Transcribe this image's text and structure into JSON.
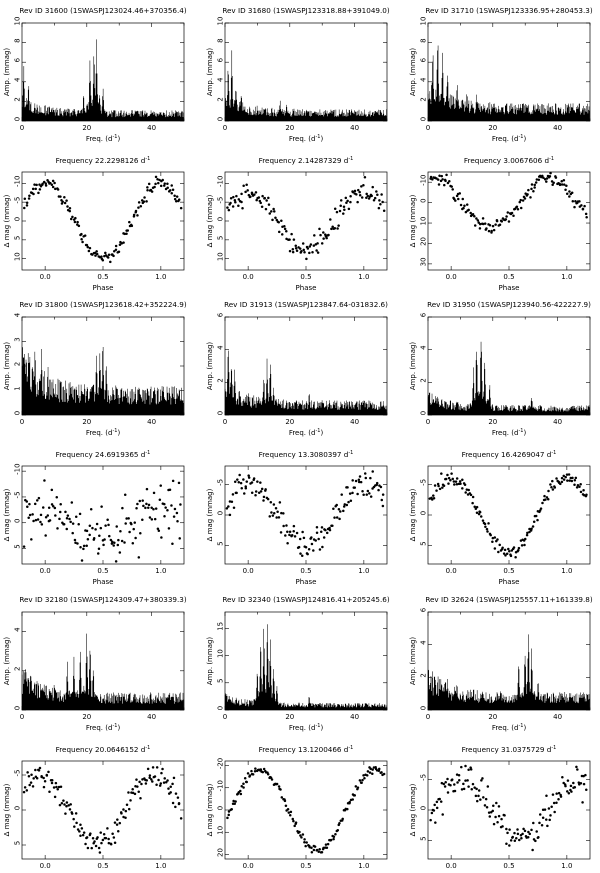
{
  "figure": {
    "freq_xlabel": "Freq. (d",
    "amp_ylabel": "Amp. (mmag)",
    "phase_xlabel": "Phase",
    "mag_ylabel": "Δ mag (mmag)",
    "freq_prefix": "Frequency",
    "freq_unit": "d",
    "unit_exp": "-1",
    "close_paren": ")"
  },
  "chart_data": [
    {
      "type": "line",
      "id": "Rev ID 31600",
      "name": "(1SWASPJ123024.46+370356.4)",
      "title": "Rev ID 31600    (1SWASPJ123024.46+370356.4)",
      "xlim": [
        0,
        50
      ],
      "ylim": [
        0,
        10
      ],
      "xticks": [
        0,
        20,
        40
      ],
      "yticks": [
        0,
        2,
        4,
        6,
        8,
        10
      ],
      "peaks": [
        [
          0.5,
          6.2
        ],
        [
          2,
          4.2
        ],
        [
          4,
          2.1
        ],
        [
          21,
          6.6
        ],
        [
          23,
          9.2
        ],
        [
          22.2,
          8.6
        ],
        [
          25,
          4.0
        ],
        [
          19,
          3.1
        ]
      ],
      "noise": 1.1,
      "frequency": "22.2298126",
      "phase_yticks": [
        -10,
        -5,
        0,
        5,
        10
      ],
      "phase_ylim": [
        -13,
        13
      ],
      "phase_amp": 10,
      "phase_scatter": 1.2,
      "phase_center": 0.5
    },
    {
      "type": "line",
      "id": "Rev ID 31680",
      "name": "(1SWASPJ123318.88+391049.0)",
      "title": "Rev ID 31680    (1SWASPJ123318.88+391049.0)",
      "xlim": [
        0,
        50
      ],
      "ylim": [
        0,
        10
      ],
      "xticks": [
        0,
        20,
        40
      ],
      "yticks": [
        0,
        2,
        4,
        6,
        8,
        10
      ],
      "peaks": [
        [
          1,
          6.8
        ],
        [
          2.1,
          7.4
        ],
        [
          3.4,
          4.2
        ],
        [
          5,
          3.4
        ],
        [
          17,
          2.6
        ],
        [
          19,
          2.0
        ],
        [
          10,
          1.5
        ]
      ],
      "noise": 1.2,
      "frequency": "2.14287329",
      "phase_yticks": [
        -10,
        -5,
        0,
        5,
        10
      ],
      "phase_ylim": [
        -13,
        13
      ],
      "phase_amp": 7.5,
      "phase_scatter": 2.0,
      "phase_center": 0.5
    },
    {
      "type": "line",
      "id": "Rev ID 31710",
      "name": "(1SWASPJ123336.95+280453.3)",
      "title": "Rev ID 31710    (1SWASPJ123336.95+280453.3)",
      "xlim": [
        0,
        50
      ],
      "ylim": [
        0,
        10
      ],
      "xticks": [
        0,
        20,
        40
      ],
      "yticks": [
        0,
        2,
        4,
        6,
        8,
        10
      ],
      "peaks": [
        [
          1.5,
          8.5
        ],
        [
          3,
          9.5
        ],
        [
          4.5,
          7.5
        ],
        [
          6,
          6.0
        ],
        [
          9,
          4.5
        ],
        [
          12,
          3.3
        ],
        [
          15,
          3.0
        ],
        [
          20,
          2.0
        ]
      ],
      "noise": 1.8,
      "frequency": "3.0067606",
      "phase_yticks": [
        -10,
        0,
        10,
        20,
        30
      ],
      "phase_ylim": [
        -15,
        33
      ],
      "phase_amp": 12,
      "phase_scatter": 2.5,
      "phase_center": 0.35
    },
    {
      "type": "line",
      "id": "Rev ID 31800",
      "name": "(1SWASPJ123618.42+352224.9)",
      "title": "Rev ID 31800    (1SWASPJ123618.42+352224.9)",
      "xlim": [
        0,
        50
      ],
      "ylim": [
        0,
        4
      ],
      "xticks": [
        0,
        20,
        40
      ],
      "yticks": [
        0,
        1,
        2,
        3,
        4
      ],
      "peaks": [
        [
          2,
          3.1
        ],
        [
          4,
          3.0
        ],
        [
          6,
          2.8
        ],
        [
          8,
          2.3
        ],
        [
          24,
          3.2
        ],
        [
          25,
          3.4
        ],
        [
          23,
          2.6
        ],
        [
          26,
          2.5
        ],
        [
          12,
          1.5
        ]
      ],
      "noise": 1.2,
      "frequency": "24.6919365",
      "phase_yticks": [
        -10,
        -5,
        0,
        5
      ],
      "phase_ylim": [
        -11,
        8
      ],
      "phase_amp": 2.5,
      "phase_scatter": 3.8,
      "phase_center": 0.5
    },
    {
      "type": "line",
      "id": "Rev ID 31913",
      "name": "(1SWASPJ123847.64-031832.6)",
      "title": "Rev ID 31913    (1SWASPJ123847.64-031832.6)",
      "xlim": [
        0,
        50
      ],
      "ylim": [
        0,
        6
      ],
      "xticks": [
        0,
        20,
        40
      ],
      "yticks": [
        0,
        2,
        4,
        6
      ],
      "peaks": [
        [
          1,
          5.2
        ],
        [
          2,
          4.2
        ],
        [
          3,
          3.2
        ],
        [
          13,
          3.6
        ],
        [
          14,
          4.1
        ],
        [
          12,
          2.5
        ],
        [
          15,
          2.0
        ],
        [
          26,
          1.5
        ]
      ],
      "noise": 0.9,
      "frequency": "13.3080397",
      "phase_yticks": [
        -5,
        0,
        5
      ],
      "phase_ylim": [
        -8,
        8
      ],
      "phase_amp": 5,
      "phase_scatter": 1.6,
      "phase_center": 0.5
    },
    {
      "type": "line",
      "id": "Rev ID 31950",
      "name": "(1SWASPJ123940.56-422227.9)",
      "title": "Rev ID 31950    (1SWASPJ123940.56-422227.9)",
      "xlim": [
        0,
        50
      ],
      "ylim": [
        0,
        6
      ],
      "xticks": [
        0,
        20,
        40
      ],
      "yticks": [
        0,
        2,
        4,
        6
      ],
      "peaks": [
        [
          15,
          4.8
        ],
        [
          16.4,
          5.8
        ],
        [
          17.5,
          4.0
        ],
        [
          14,
          3.0
        ],
        [
          19,
          2.2
        ],
        [
          32,
          1.3
        ],
        [
          2,
          1.0
        ]
      ],
      "noise": 0.6,
      "frequency": "16.4269047",
      "phase_yticks": [
        -5,
        0,
        5
      ],
      "phase_ylim": [
        -8,
        8
      ],
      "phase_amp": 6,
      "phase_scatter": 0.8,
      "phase_center": 0.5
    },
    {
      "type": "line",
      "id": "Rev ID 32180",
      "name": "(1SWASPJ124309.47+380339.3)",
      "title": "Rev ID 32180    (1SWASPJ124309.47+380339.3)",
      "xlim": [
        0,
        50
      ],
      "ylim": [
        0,
        5
      ],
      "xticks": [
        0,
        20,
        40
      ],
      "yticks": [
        0,
        2,
        4
      ],
      "peaks": [
        [
          1,
          2.4
        ],
        [
          2,
          2.0
        ],
        [
          14,
          2.7
        ],
        [
          16,
          2.9
        ],
        [
          18,
          3.5
        ],
        [
          20,
          4.4
        ],
        [
          21,
          3.8
        ],
        [
          22,
          2.6
        ],
        [
          10,
          1.7
        ]
      ],
      "noise": 0.9,
      "frequency": "20.0646152",
      "phase_yticks": [
        -5,
        0,
        5
      ],
      "phase_ylim": [
        -7,
        7
      ],
      "phase_amp": 5,
      "phase_scatter": 1.3,
      "phase_center": 0.45
    },
    {
      "type": "line",
      "id": "Rev ID 32340",
      "name": "(1SWASPJ124816.41+205245.6)",
      "title": "Rev ID 32340    (1SWASPJ124816.41+205245.6)",
      "xlim": [
        0,
        50
      ],
      "ylim": [
        0,
        18
      ],
      "xticks": [
        0,
        20,
        40
      ],
      "yticks": [
        0,
        5,
        10,
        15
      ],
      "peaks": [
        [
          11,
          13.5
        ],
        [
          12,
          16.5
        ],
        [
          13.1,
          18.0
        ],
        [
          14,
          14.0
        ],
        [
          15,
          9.5
        ],
        [
          10,
          8.5
        ],
        [
          16,
          5.0
        ],
        [
          26,
          3.0
        ]
      ],
      "noise": 1.3,
      "frequency": "13.1200466",
      "phase_yticks": [
        -20,
        -10,
        0,
        10,
        20
      ],
      "phase_ylim": [
        -22,
        22
      ],
      "phase_amp": 18,
      "phase_scatter": 1.2,
      "phase_center": 0.6
    },
    {
      "type": "line",
      "id": "Rev ID 32624",
      "name": "(1SWASPJ125557.11+161339.8)",
      "title": "Rev ID 32624    (1SWASPJ125557.11+161339.8)",
      "xlim": [
        0,
        50
      ],
      "ylim": [
        0,
        6
      ],
      "xticks": [
        0,
        20,
        40
      ],
      "yticks": [
        0,
        2,
        4,
        6
      ],
      "peaks": [
        [
          2,
          2.5
        ],
        [
          4,
          2.3
        ],
        [
          6,
          2.0
        ],
        [
          28,
          3.5
        ],
        [
          30,
          4.6
        ],
        [
          31,
          5.3
        ],
        [
          32,
          4.0
        ],
        [
          34,
          2.2
        ]
      ],
      "noise": 1.1,
      "frequency": "31.0375729",
      "phase_yticks": [
        -5,
        0,
        5
      ],
      "phase_ylim": [
        -8,
        8
      ],
      "phase_amp": 4.5,
      "phase_scatter": 1.8,
      "phase_center": 0.6
    }
  ]
}
